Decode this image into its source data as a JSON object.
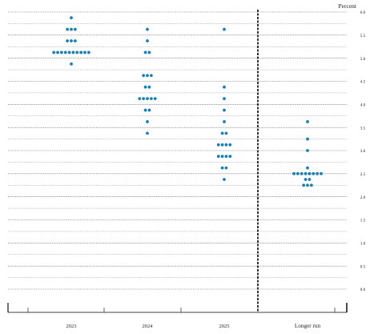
{
  "chart_data": {
    "type": "scatter",
    "title": "",
    "xlabel": "",
    "ylabel": "",
    "unit_label": "Percent",
    "categories": [
      "2023",
      "2024",
      "2025",
      "Longer run"
    ],
    "ylim": [
      0,
      6.0
    ],
    "y_tick_labels": [
      "0.0",
      "0.5",
      "1.0",
      "1.5",
      "2.0",
      "2.5",
      "3.0",
      "3.5",
      "4.0",
      "4.5",
      "5.0",
      "5.5",
      "6.0"
    ],
    "dot_color": "#1a7fb4",
    "series": [
      {
        "category": "2023",
        "points": [
          {
            "y": 5.875,
            "count": 1
          },
          {
            "y": 5.625,
            "count": 3
          },
          {
            "y": 5.375,
            "count": 3
          },
          {
            "y": 5.125,
            "count": 10
          },
          {
            "y": 4.875,
            "count": 1
          }
        ]
      },
      {
        "category": "2024",
        "points": [
          {
            "y": 5.625,
            "count": 1
          },
          {
            "y": 5.375,
            "count": 1
          },
          {
            "y": 5.125,
            "count": 2
          },
          {
            "y": 4.625,
            "count": 3
          },
          {
            "y": 4.375,
            "count": 2
          },
          {
            "y": 4.125,
            "count": 5
          },
          {
            "y": 3.875,
            "count": 2
          },
          {
            "y": 3.625,
            "count": 1
          },
          {
            "y": 3.375,
            "count": 1
          }
        ]
      },
      {
        "category": "2025",
        "points": [
          {
            "y": 5.625,
            "count": 1
          },
          {
            "y": 4.375,
            "count": 1
          },
          {
            "y": 4.125,
            "count": 1
          },
          {
            "y": 3.875,
            "count": 1
          },
          {
            "y": 3.625,
            "count": 1
          },
          {
            "y": 3.375,
            "count": 2
          },
          {
            "y": 3.125,
            "count": 4
          },
          {
            "y": 2.875,
            "count": 4
          },
          {
            "y": 2.625,
            "count": 2
          },
          {
            "y": 2.375,
            "count": 1
          }
        ]
      },
      {
        "category": "Longer run",
        "points": [
          {
            "y": 3.625,
            "count": 1
          },
          {
            "y": 3.25,
            "count": 1
          },
          {
            "y": 3.0,
            "count": 1
          },
          {
            "y": 2.625,
            "count": 1
          },
          {
            "y": 2.5,
            "count": 8
          },
          {
            "y": 2.375,
            "count": 2
          },
          {
            "y": 2.25,
            "count": 3
          }
        ]
      }
    ],
    "grid": true,
    "divider_before": "Longer run"
  }
}
